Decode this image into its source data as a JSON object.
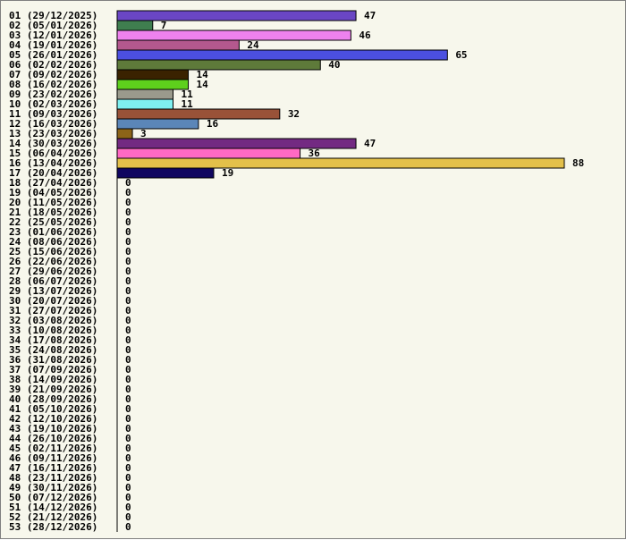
{
  "chart_data": {
    "type": "bar",
    "orientation": "horizontal",
    "title": "",
    "xlabel": "",
    "ylabel": "",
    "xlim": [
      0,
      88
    ],
    "grid": false,
    "legend": "none",
    "background": "#f7f7ec",
    "categories": [
      "01 (29/12/2025)",
      "02 (05/01/2026)",
      "03 (12/01/2026)",
      "04 (19/01/2026)",
      "05 (26/01/2026)",
      "06 (02/02/2026)",
      "07 (09/02/2026)",
      "08 (16/02/2026)",
      "09 (23/02/2026)",
      "10 (02/03/2026)",
      "11 (09/03/2026)",
      "12 (16/03/2026)",
      "13 (23/03/2026)",
      "14 (30/03/2026)",
      "15 (06/04/2026)",
      "16 (13/04/2026)",
      "17 (20/04/2026)",
      "18 (27/04/2026)",
      "19 (04/05/2026)",
      "20 (11/05/2026)",
      "21 (18/05/2026)",
      "22 (25/05/2026)",
      "23 (01/06/2026)",
      "24 (08/06/2026)",
      "25 (15/06/2026)",
      "26 (22/06/2026)",
      "27 (29/06/2026)",
      "28 (06/07/2026)",
      "29 (13/07/2026)",
      "30 (20/07/2026)",
      "31 (27/07/2026)",
      "32 (03/08/2026)",
      "33 (10/08/2026)",
      "34 (17/08/2026)",
      "35 (24/08/2026)",
      "36 (31/08/2026)",
      "37 (07/09/2026)",
      "38 (14/09/2026)",
      "39 (21/09/2026)",
      "40 (28/09/2026)",
      "41 (05/10/2026)",
      "42 (12/10/2026)",
      "43 (19/10/2026)",
      "44 (26/10/2026)",
      "45 (02/11/2026)",
      "46 (09/11/2026)",
      "47 (16/11/2026)",
      "48 (23/11/2026)",
      "49 (30/11/2026)",
      "50 (07/12/2026)",
      "51 (14/12/2026)",
      "52 (21/12/2026)",
      "53 (28/12/2026)"
    ],
    "values": [
      47,
      7,
      46,
      24,
      65,
      40,
      14,
      14,
      11,
      11,
      32,
      16,
      3,
      47,
      36,
      88,
      19,
      0,
      0,
      0,
      0,
      0,
      0,
      0,
      0,
      0,
      0,
      0,
      0,
      0,
      0,
      0,
      0,
      0,
      0,
      0,
      0,
      0,
      0,
      0,
      0,
      0,
      0,
      0,
      0,
      0,
      0,
      0,
      0,
      0,
      0,
      0,
      0
    ],
    "colors": [
      "#6a46c4",
      "#3f7e4f",
      "#ee82ee",
      "#b4588e",
      "#4b4fe0",
      "#5e7a3a",
      "#3a2200",
      "#5ed01c",
      "#9a9a8c",
      "#7ff0f0",
      "#995238",
      "#5b86b8",
      "#8c6418",
      "#732a82",
      "#ff69c4",
      "#e3c04a",
      "#100660"
    ]
  }
}
